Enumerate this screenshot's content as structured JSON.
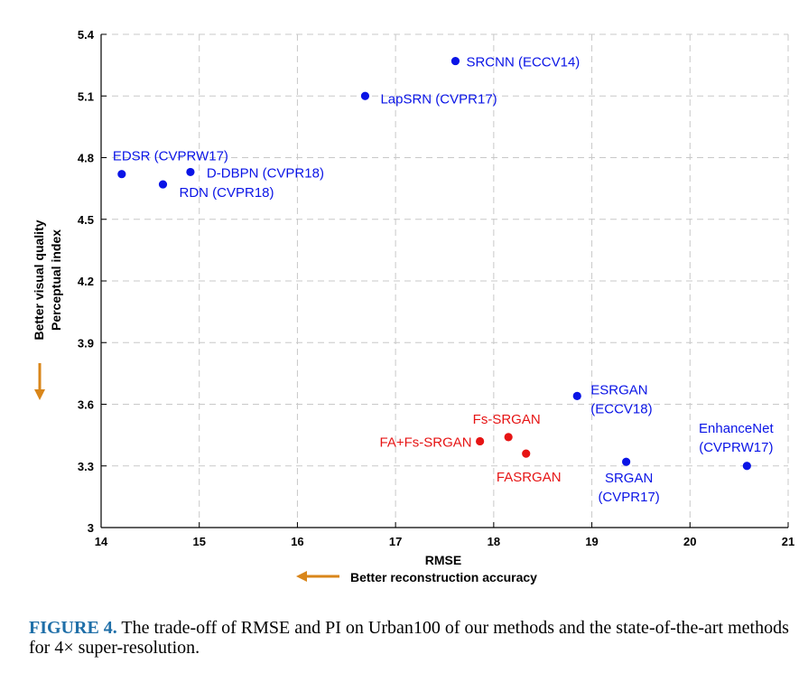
{
  "chart_data": {
    "type": "scatter",
    "xlabel": "RMSE",
    "ylabel_lines": [
      "Better visual quality",
      "Perceptual index"
    ],
    "x_hint": "Better reconstruction accuracy",
    "xlim": [
      14,
      21
    ],
    "ylim": [
      3,
      5.4
    ],
    "xticks": [
      "14",
      "15",
      "16",
      "17",
      "18",
      "19",
      "20",
      "21"
    ],
    "yticks": [
      "3",
      "3.3",
      "3.6",
      "3.9",
      "4.2",
      "4.5",
      "4.8",
      "5.1",
      "5.4"
    ],
    "grid": true,
    "colors": {
      "baseline": "#0a14e6",
      "ours": "#e61414",
      "arrow": "#d9861a"
    },
    "points": [
      {
        "x": 17.61,
        "y": 5.27,
        "group": "baseline",
        "label": [
          "SRCNN (ECCV14)"
        ]
      },
      {
        "x": 16.69,
        "y": 5.1,
        "group": "baseline",
        "label": [
          "LapSRN (CVPR17)"
        ]
      },
      {
        "x": 14.21,
        "y": 4.72,
        "group": "baseline",
        "label": [
          "EDSR  (CVPRW17)"
        ]
      },
      {
        "x": 14.91,
        "y": 4.73,
        "group": "baseline",
        "label": [
          "D-DBPN (CVPR18)"
        ]
      },
      {
        "x": 14.63,
        "y": 4.67,
        "group": "baseline",
        "label": [
          "RDN (CVPR18)"
        ]
      },
      {
        "x": 18.85,
        "y": 3.64,
        "group": "baseline",
        "label": [
          "ESRGAN",
          "(ECCV18)"
        ]
      },
      {
        "x": 19.35,
        "y": 3.32,
        "group": "baseline",
        "label": [
          "SRGAN",
          "(CVPR17)"
        ]
      },
      {
        "x": 20.58,
        "y": 3.3,
        "group": "baseline",
        "label": [
          "EnhanceNet",
          "(CVPRW17)"
        ]
      },
      {
        "x": 18.15,
        "y": 3.44,
        "group": "ours",
        "label": [
          "Fs-SRGAN"
        ]
      },
      {
        "x": 17.86,
        "y": 3.42,
        "group": "ours",
        "label": [
          "FA+Fs-SRGAN"
        ]
      },
      {
        "x": 18.33,
        "y": 3.36,
        "group": "ours",
        "label": [
          "FASRGAN"
        ]
      }
    ]
  },
  "caption": {
    "figure_label": "FIGURE 4.",
    "text": " The trade-off of RMSE and PI on Urban100 of our methods and the state-of-the-art methods for 4× super-resolution."
  }
}
